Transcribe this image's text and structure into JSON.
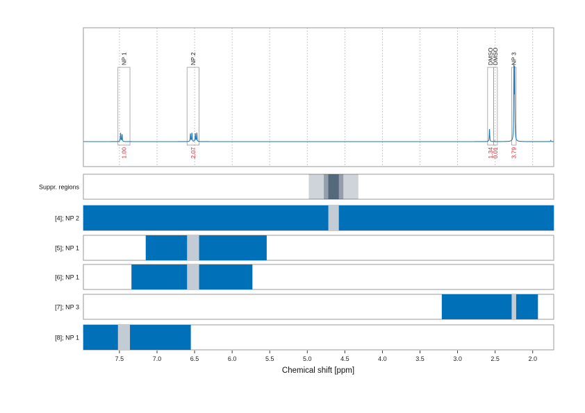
{
  "chart_data": {
    "type": "line",
    "xlabel": "Chemical shift [ppm]",
    "xlim": [
      7.98,
      1.72
    ],
    "x_ticks": [
      "7.5",
      "7.0",
      "6.5",
      "6.0",
      "5.5",
      "5.0",
      "4.5",
      "4.0",
      "3.5",
      "3.0",
      "2.5",
      "2.0"
    ],
    "x_tick_values": [
      7.5,
      7.0,
      6.5,
      6.0,
      5.5,
      5.0,
      4.5,
      4.0,
      3.5,
      3.0,
      2.5,
      2.0
    ],
    "grid": "vertical-dotted",
    "colors": {
      "spectrum": "#1f77b4",
      "segment": "#0070b8",
      "excluded": "#c3ccd4",
      "integral_label": "#e8202a",
      "box": "#999999"
    },
    "spectrum": {
      "peaks": [
        {
          "ppm": 7.485,
          "height": 0.12
        },
        {
          "ppm": 7.465,
          "height": 0.1
        },
        {
          "ppm": 6.555,
          "height": 0.11
        },
        {
          "ppm": 6.535,
          "height": 0.12
        },
        {
          "ppm": 6.49,
          "height": 0.11
        },
        {
          "ppm": 6.47,
          "height": 0.12
        },
        {
          "ppm": 2.575,
          "height": 0.18
        },
        {
          "ppm": 2.505,
          "height": 0.01
        },
        {
          "ppm": 2.25,
          "height": 0.97
        },
        {
          "ppm": 2.24,
          "height": 0.93
        },
        {
          "ppm": 1.76,
          "height": 0.015
        }
      ]
    },
    "integration_regions": [
      {
        "label": "NP 1",
        "from": 7.52,
        "to": 7.36,
        "integral": "1.00"
      },
      {
        "label": "NP 2",
        "from": 6.6,
        "to": 6.44,
        "integral": "2.07"
      },
      {
        "label": "DMSO",
        "from": 2.6,
        "to": 2.52,
        "integral": "1.34"
      },
      {
        "label": "DMSO",
        "from": 2.52,
        "to": 2.47,
        "integral": "0.01"
      },
      {
        "label": "NP 3",
        "from": 2.28,
        "to": 2.22,
        "integral": "3.79"
      }
    ],
    "suppressed_regions": {
      "label": "Suppr. regions",
      "layers": [
        {
          "from": 4.98,
          "to": 4.32,
          "opacity": 0.22
        },
        {
          "from": 4.78,
          "to": 4.52,
          "opacity": 0.35
        },
        {
          "from": 4.72,
          "to": 4.58,
          "opacity": 0.55
        }
      ]
    },
    "segment_rows": [
      {
        "label": "[4]; NP 2",
        "from": 7.98,
        "to": 1.72,
        "gap_from": 4.72,
        "gap_to": 4.58
      },
      {
        "label": "[5]; NP 1",
        "from": 7.15,
        "to": 5.54,
        "gap_from": 6.6,
        "gap_to": 6.44
      },
      {
        "label": "[6]; NP 1",
        "from": 7.34,
        "to": 5.73,
        "gap_from": 6.6,
        "gap_to": 6.44
      },
      {
        "label": "[7]; NP 3",
        "from": 3.21,
        "to": 1.93,
        "gap_from": 2.28,
        "gap_to": 2.22
      },
      {
        "label": "[8]; NP 1",
        "from": 7.98,
        "to": 6.55,
        "gap_from": 7.52,
        "gap_to": 7.36
      }
    ]
  }
}
